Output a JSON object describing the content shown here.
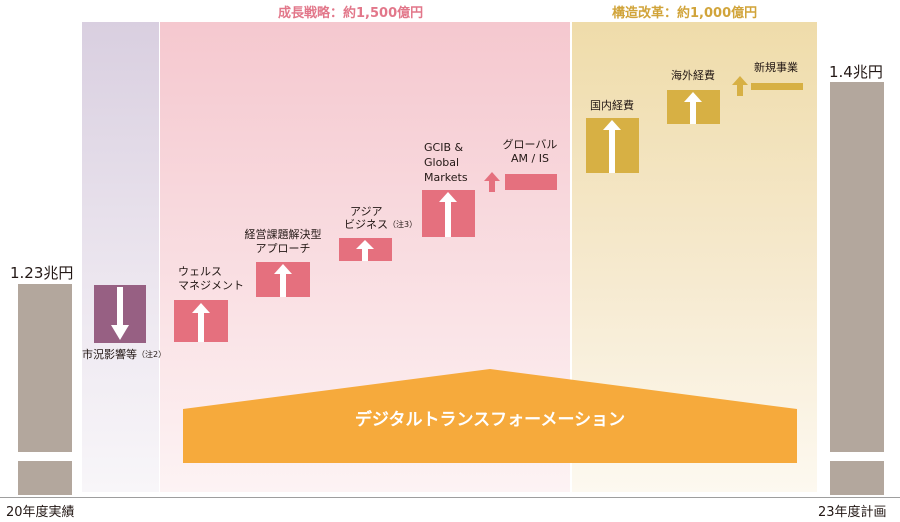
{
  "headers": {
    "growth": "成長戦略：約1,500億円",
    "restructure": "構造改革：約1,000億円"
  },
  "bars": {
    "start": {
      "value": "1.23兆円",
      "label": "20年度実績"
    },
    "end": {
      "value": "1.4兆円",
      "label": "23年度計画"
    }
  },
  "items": [
    {
      "id": "market",
      "label": "市況影響等",
      "note": "（注2）",
      "direction": "down"
    },
    {
      "id": "wealth",
      "lines": [
        "ウェルス",
        "マネジメント"
      ],
      "direction": "up"
    },
    {
      "id": "consulting",
      "lines": [
        "経営課題解決型",
        "アプローチ"
      ],
      "direction": "up"
    },
    {
      "id": "asia",
      "lines": [
        "アジア",
        "ビジネス"
      ],
      "note": "（注3）",
      "direction": "up"
    },
    {
      "id": "gcib",
      "lines": [
        "GCIB &",
        "Global",
        "Markets"
      ],
      "direction": "up"
    },
    {
      "id": "global",
      "lines": [
        "グローバル",
        "AM / IS"
      ],
      "direction": "up"
    },
    {
      "id": "domestic",
      "label": "国内経費",
      "direction": "up"
    },
    {
      "id": "overseas",
      "label": "海外経費",
      "direction": "up"
    },
    {
      "id": "newbiz",
      "label": "新規事業",
      "direction": "up"
    }
  ],
  "dx": {
    "label": "デジタルトランスフォーメーション"
  },
  "colors": {
    "growth_header": "#e2778a",
    "restructure_header": "#d1a43a",
    "pink_box": "#e5707e",
    "purple_box": "#976083",
    "gold_box": "#d7b044",
    "dx_fill": "#f6aa3c",
    "bar_gray": "#b3a79d"
  }
}
